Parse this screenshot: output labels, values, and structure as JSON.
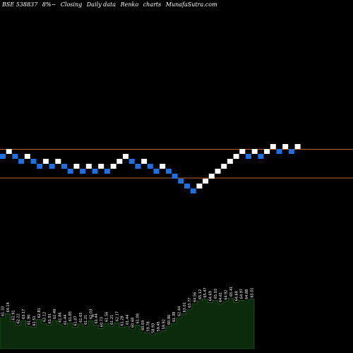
{
  "header": {
    "symbol": "BSE 538837",
    "name": "8%~",
    "c1": "Closing",
    "c2": "Daily data",
    "c3": "Renko",
    "c4": "charts",
    "site": "MunafaSutra.com"
  },
  "colors": {
    "background": "#000000",
    "up_brick": "#ffffff",
    "down_brick": "#1e6fe0",
    "reference_line": "#b8641e",
    "volume_fill": "#0c2a0c",
    "volume_edge": "#2e6a2e",
    "label_text": "#ffffff"
  },
  "chart_data": {
    "type": "renko",
    "reference_levels": [
      64.0,
      58.2
    ],
    "bricks": [
      {
        "dir": "down",
        "level": 63.0
      },
      {
        "dir": "up",
        "level": 64.0
      },
      {
        "dir": "down",
        "level": 63.0
      },
      {
        "dir": "down",
        "level": 62.0
      },
      {
        "dir": "up",
        "level": 63.0
      },
      {
        "dir": "down",
        "level": 62.0
      },
      {
        "dir": "down",
        "level": 61.0
      },
      {
        "dir": "up",
        "level": 62.0
      },
      {
        "dir": "down",
        "level": 61.0
      },
      {
        "dir": "up",
        "level": 62.0
      },
      {
        "dir": "down",
        "level": 61.0
      },
      {
        "dir": "down",
        "level": 60.0
      },
      {
        "dir": "up",
        "level": 61.0
      },
      {
        "dir": "down",
        "level": 60.0
      },
      {
        "dir": "up",
        "level": 61.0
      },
      {
        "dir": "down",
        "level": 60.0
      },
      {
        "dir": "up",
        "level": 61.0
      },
      {
        "dir": "down",
        "level": 60.0
      },
      {
        "dir": "up",
        "level": 61.0
      },
      {
        "dir": "up",
        "level": 62.0
      },
      {
        "dir": "up",
        "level": 63.0
      },
      {
        "dir": "down",
        "level": 62.0
      },
      {
        "dir": "down",
        "level": 61.0
      },
      {
        "dir": "up",
        "level": 62.0
      },
      {
        "dir": "down",
        "level": 61.0
      },
      {
        "dir": "down",
        "level": 60.0
      },
      {
        "dir": "up",
        "level": 61.0
      },
      {
        "dir": "down",
        "level": 60.0
      },
      {
        "dir": "down",
        "level": 59.0
      },
      {
        "dir": "down",
        "level": 58.0
      },
      {
        "dir": "down",
        "level": 57.0
      },
      {
        "dir": "down",
        "level": 56.0
      },
      {
        "dir": "up",
        "level": 57.0
      },
      {
        "dir": "up",
        "level": 58.0
      },
      {
        "dir": "up",
        "level": 59.0
      },
      {
        "dir": "up",
        "level": 60.0
      },
      {
        "dir": "up",
        "level": 61.0
      },
      {
        "dir": "up",
        "level": 62.0
      },
      {
        "dir": "up",
        "level": 63.0
      },
      {
        "dir": "up",
        "level": 64.0
      },
      {
        "dir": "down",
        "level": 63.0
      },
      {
        "dir": "up",
        "level": 64.0
      },
      {
        "dir": "down",
        "level": 63.0
      },
      {
        "dir": "up",
        "level": 64.0
      },
      {
        "dir": "up",
        "level": 65.0
      },
      {
        "dir": "down",
        "level": 64.0
      },
      {
        "dir": "up",
        "level": 65.0
      },
      {
        "dir": "down",
        "level": 64.0
      },
      {
        "dir": "up",
        "level": 65.0
      }
    ],
    "volume": {
      "values": [
        0.55,
        0.62,
        0.48,
        0.42,
        0.5,
        0.4,
        0.38,
        0.52,
        0.45,
        0.42,
        0.5,
        0.44,
        0.4,
        0.46,
        0.38,
        0.44,
        0.4,
        0.5,
        0.42,
        0.36,
        0.45,
        0.4,
        0.46,
        0.38,
        0.4,
        0.35,
        0.42,
        0.3,
        0.28,
        0.25,
        0.28,
        0.32,
        0.4,
        0.45,
        0.55,
        0.62,
        0.7,
        0.8,
        0.85,
        0.88,
        0.82,
        0.86,
        0.8,
        0.84,
        0.9,
        0.82,
        0.86,
        0.85,
        0.88
      ],
      "labels": [
        "61.33",
        "64.14",
        "62.91",
        "62.22",
        "63.17",
        "61.90",
        "61.51",
        "62.81",
        "62.12",
        "61.91",
        "62.49",
        "61.86",
        "61.44",
        "61.85",
        "61.07",
        "61.65",
        "61.21",
        "62.03",
        "61.44",
        "60.73",
        "61.56",
        "61.21",
        "62.17",
        "61.28",
        "61.44",
        "60.68",
        "61.08",
        "60.03",
        "59.78",
        "58.93",
        "59.45",
        "59.92",
        "60.86",
        "61.38",
        "62.44",
        "63.01",
        "63.77",
        "64.56",
        "65.12",
        "65.47",
        "64.69",
        "65.03",
        "64.61",
        "64.92",
        "65.41",
        "64.68",
        "64.97",
        "64.88",
        "65.01"
      ],
      "marker": "0"
    }
  }
}
